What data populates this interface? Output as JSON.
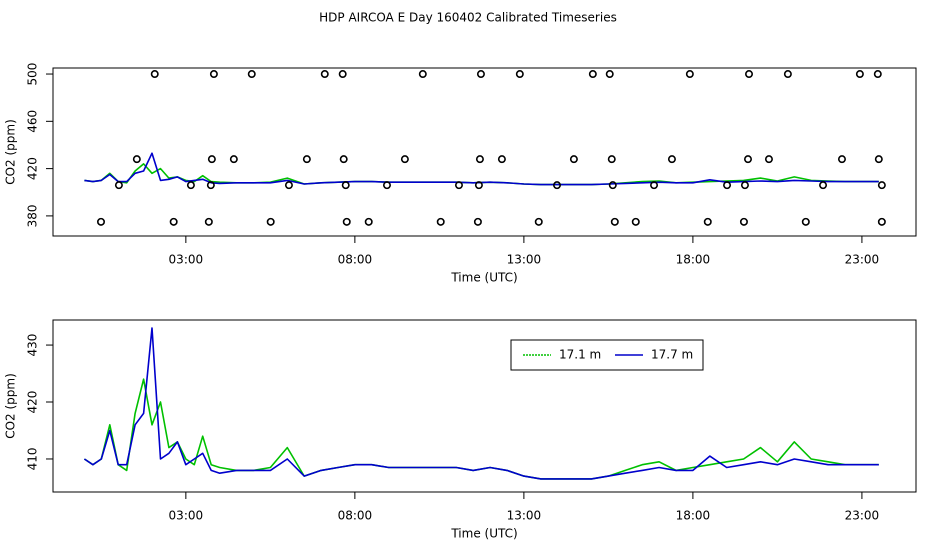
{
  "title": "HDP AIRCOA E  Day 160402  Calibrated Timeseries",
  "chart_data": [
    {
      "type": "line",
      "x_label": "Time (UTC)",
      "y_label": "CO2 (ppm)",
      "xlim": [
        -0.93,
        24.6
      ],
      "ylim": [
        363,
        505.1
      ],
      "xticks": [
        {
          "value": 3,
          "label": "03:00"
        },
        {
          "value": 8,
          "label": "08:00"
        },
        {
          "value": 13,
          "label": "13:00"
        },
        {
          "value": 18,
          "label": "18:00"
        },
        {
          "value": 23,
          "label": "23:00"
        }
      ],
      "yticks": [
        380,
        420,
        460,
        500
      ],
      "x": [
        0,
        0.25,
        0.5,
        0.75,
        1,
        1.25,
        1.5,
        1.75,
        2,
        2.25,
        2.5,
        2.75,
        3,
        3.25,
        3.5,
        3.75,
        4,
        4.5,
        5,
        5.5,
        6,
        6.5,
        7,
        7.5,
        8,
        8.5,
        9,
        9.5,
        10,
        10.5,
        11,
        11.5,
        12,
        12.5,
        13,
        13.5,
        14,
        14.5,
        15,
        15.5,
        16,
        16.5,
        17,
        17.5,
        18,
        18.5,
        19,
        19.5,
        20,
        20.5,
        21,
        21.5,
        22,
        22.5,
        23,
        23.5
      ],
      "series": [
        {
          "color": "#00c000",
          "values": [
            410,
            409,
            410,
            416,
            409,
            408,
            418,
            424,
            416,
            420,
            412,
            413,
            410,
            409,
            414,
            409,
            408.5,
            408,
            408,
            408.5,
            412,
            407,
            408,
            408.5,
            409,
            409,
            408.5,
            408.5,
            408.5,
            408.5,
            408.5,
            408,
            408.5,
            408,
            407,
            406.5,
            406.5,
            406.5,
            406.5,
            407,
            408,
            409,
            409.5,
            408,
            408.5,
            409,
            409.5,
            410,
            412,
            409.5,
            413,
            410,
            409.5,
            409,
            409,
            409
          ]
        },
        {
          "color": "#0000cc",
          "values": [
            410,
            409,
            410,
            415,
            409,
            409,
            416,
            418,
            433,
            410,
            411,
            413,
            409,
            410,
            411,
            408,
            407.5,
            408,
            408,
            408,
            410,
            407,
            408,
            408.5,
            409,
            409,
            408.5,
            408.5,
            408.5,
            408.5,
            408.5,
            408,
            408.5,
            408,
            407,
            406.5,
            406.5,
            406.5,
            406.5,
            407,
            407.5,
            408,
            408.5,
            408,
            408,
            410.5,
            408.5,
            409,
            409.5,
            409,
            410,
            409.5,
            409,
            409,
            409,
            409
          ]
        },
        {
          "color": "#000000",
          "marker": "circle",
          "x": [
            2.08,
            3.83,
            4.95,
            7.11,
            7.64,
            10.01,
            11.73,
            12.88,
            15.04,
            15.54,
            17.91,
            19.66,
            20.81,
            22.94,
            23.47,
            1.55,
            3.77,
            4.42,
            6.58,
            7.67,
            9.48,
            11.7,
            12.35,
            14.48,
            15.6,
            17.38,
            19.63,
            20.25,
            22.41,
            23.5,
            1.02,
            3.15,
            3.74,
            6.05,
            7.73,
            8.95,
            11.08,
            11.67,
            13.98,
            15.63,
            16.85,
            19.01,
            19.54,
            21.85,
            23.59,
            0.49,
            2.64,
            3.68,
            5.51,
            7.76,
            8.41,
            10.54,
            11.64,
            13.44,
            15.69,
            16.31,
            18.44,
            19.51,
            21.34,
            23.59
          ],
          "values": [
            500,
            500,
            500,
            500,
            500,
            500,
            500,
            500,
            500,
            500,
            500,
            500,
            500,
            500,
            500,
            428,
            428,
            428,
            428,
            428,
            428,
            428,
            428,
            428,
            428,
            428,
            428,
            428,
            428,
            428,
            406,
            406,
            406,
            406,
            406,
            406,
            406,
            406,
            406,
            406,
            406,
            406,
            406,
            406,
            406,
            375,
            375,
            375,
            375,
            375,
            375,
            375,
            375,
            375,
            375,
            375,
            375,
            375,
            375,
            375
          ]
        }
      ]
    },
    {
      "type": "line",
      "x_label": "Time (UTC)",
      "y_label": "CO2 (ppm)",
      "xlim": [
        -0.93,
        24.6
      ],
      "ylim": [
        404.2,
        434.4
      ],
      "xticks": [
        {
          "value": 3,
          "label": "03:00"
        },
        {
          "value": 8,
          "label": "08:00"
        },
        {
          "value": 13,
          "label": "13:00"
        },
        {
          "value": 18,
          "label": "18:00"
        },
        {
          "value": 23,
          "label": "23:00"
        }
      ],
      "yticks": [
        410,
        420,
        430
      ],
      "legend": "top-right",
      "x": [
        0,
        0.25,
        0.5,
        0.75,
        1,
        1.25,
        1.5,
        1.75,
        2,
        2.25,
        2.5,
        2.75,
        3,
        3.25,
        3.5,
        3.75,
        4,
        4.5,
        5,
        5.5,
        6,
        6.5,
        7,
        7.5,
        8,
        8.5,
        9,
        9.5,
        10,
        10.5,
        11,
        11.5,
        12,
        12.5,
        13,
        13.5,
        14,
        14.5,
        15,
        15.5,
        16,
        16.5,
        17,
        17.5,
        18,
        18.5,
        19,
        19.5,
        20,
        20.5,
        21,
        21.5,
        22,
        22.5,
        23,
        23.5
      ],
      "series": [
        {
          "name": "17.1 m",
          "color": "#00c000",
          "dash": true,
          "values": [
            410,
            409,
            410,
            416,
            409,
            408,
            418,
            424,
            416,
            420,
            412,
            413,
            410,
            409,
            414,
            409,
            408.5,
            408,
            408,
            408.5,
            412,
            407,
            408,
            408.5,
            409,
            409,
            408.5,
            408.5,
            408.5,
            408.5,
            408.5,
            408,
            408.5,
            408,
            407,
            406.5,
            406.5,
            406.5,
            406.5,
            407,
            408,
            409,
            409.5,
            408,
            408.5,
            409,
            409.5,
            410,
            412,
            409.5,
            413,
            410,
            409.5,
            409,
            409,
            409
          ]
        },
        {
          "name": "17.7 m",
          "color": "#0000cc",
          "values": [
            410,
            409,
            410,
            415,
            409,
            409,
            416,
            418,
            433,
            410,
            411,
            413,
            409,
            410,
            411,
            408,
            407.5,
            408,
            408,
            408,
            410,
            407,
            408,
            408.5,
            409,
            409,
            408.5,
            408.5,
            408.5,
            408.5,
            408.5,
            408,
            408.5,
            408,
            407,
            406.5,
            406.5,
            406.5,
            406.5,
            407,
            407.5,
            408,
            408.5,
            408,
            408,
            410.5,
            408.5,
            409,
            409.5,
            409,
            410,
            409.5,
            409,
            409,
            409,
            409
          ]
        }
      ]
    }
  ]
}
